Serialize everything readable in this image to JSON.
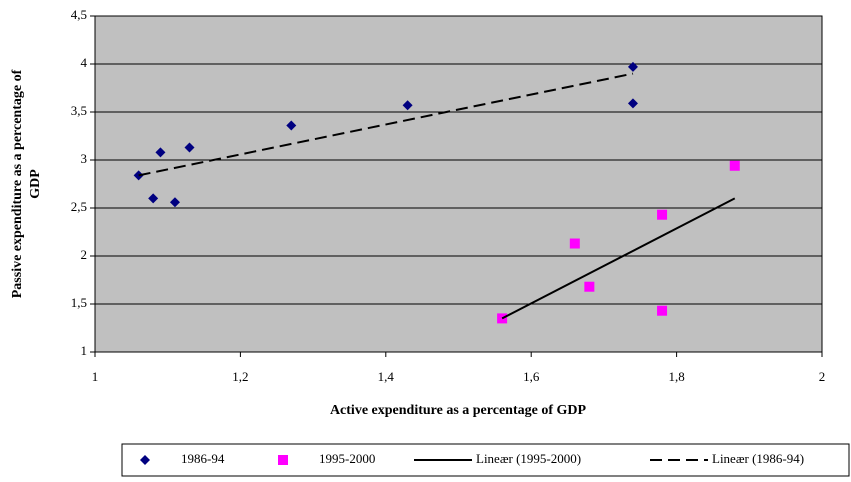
{
  "chart_data": {
    "type": "scatter",
    "x_label": "Active expenditure as a percentage of GDP",
    "y_label": [
      "Passive expenditure as a percentage of",
      "GDP"
    ],
    "xlim": [
      1,
      2
    ],
    "xticks": [
      1,
      {
        "value": 1.2,
        "label": "1,2"
      },
      {
        "value": 1.4,
        "label": "1,4"
      },
      {
        "value": 1.6,
        "label": "1,6"
      },
      {
        "value": 1.8,
        "label": "1,8"
      },
      2
    ],
    "ylim": [
      1,
      4.5
    ],
    "yticks": [
      1,
      {
        "value": 1.5,
        "label": "1,5"
      },
      2,
      {
        "value": 2.5,
        "label": "2,5"
      },
      3,
      {
        "value": 3.5,
        "label": "3,5"
      },
      4,
      {
        "value": 4.5,
        "label": "4,5"
      }
    ],
    "grid": true,
    "legend": "bottom",
    "series": [
      {
        "name": "1986-94",
        "color": "#000080",
        "marker": "diamond",
        "x": [
          1.06,
          1.08,
          1.09,
          1.11,
          1.13,
          1.27,
          1.43,
          1.74,
          1.74
        ],
        "values": [
          2.84,
          2.6,
          3.08,
          2.56,
          3.13,
          3.36,
          3.57,
          3.97,
          3.59
        ]
      },
      {
        "name": "1995-2000",
        "color": "#ff00ff",
        "marker": "square",
        "x": [
          1.56,
          1.66,
          1.68,
          1.78,
          1.78,
          1.88
        ],
        "values": [
          1.35,
          2.13,
          1.68,
          2.43,
          1.43,
          2.94
        ]
      },
      {
        "name": "Lineær (1995-2000)",
        "color": "#000000",
        "marker": "line",
        "dash": "solid",
        "x": [
          1.56,
          1.88
        ],
        "values": [
          1.35,
          2.6
        ]
      },
      {
        "name": "Lineær (1986-94)",
        "color": "#000000",
        "marker": "line",
        "dash": "dashed",
        "x": [
          1.06,
          1.74
        ],
        "values": [
          2.84,
          3.9
        ]
      }
    ]
  }
}
